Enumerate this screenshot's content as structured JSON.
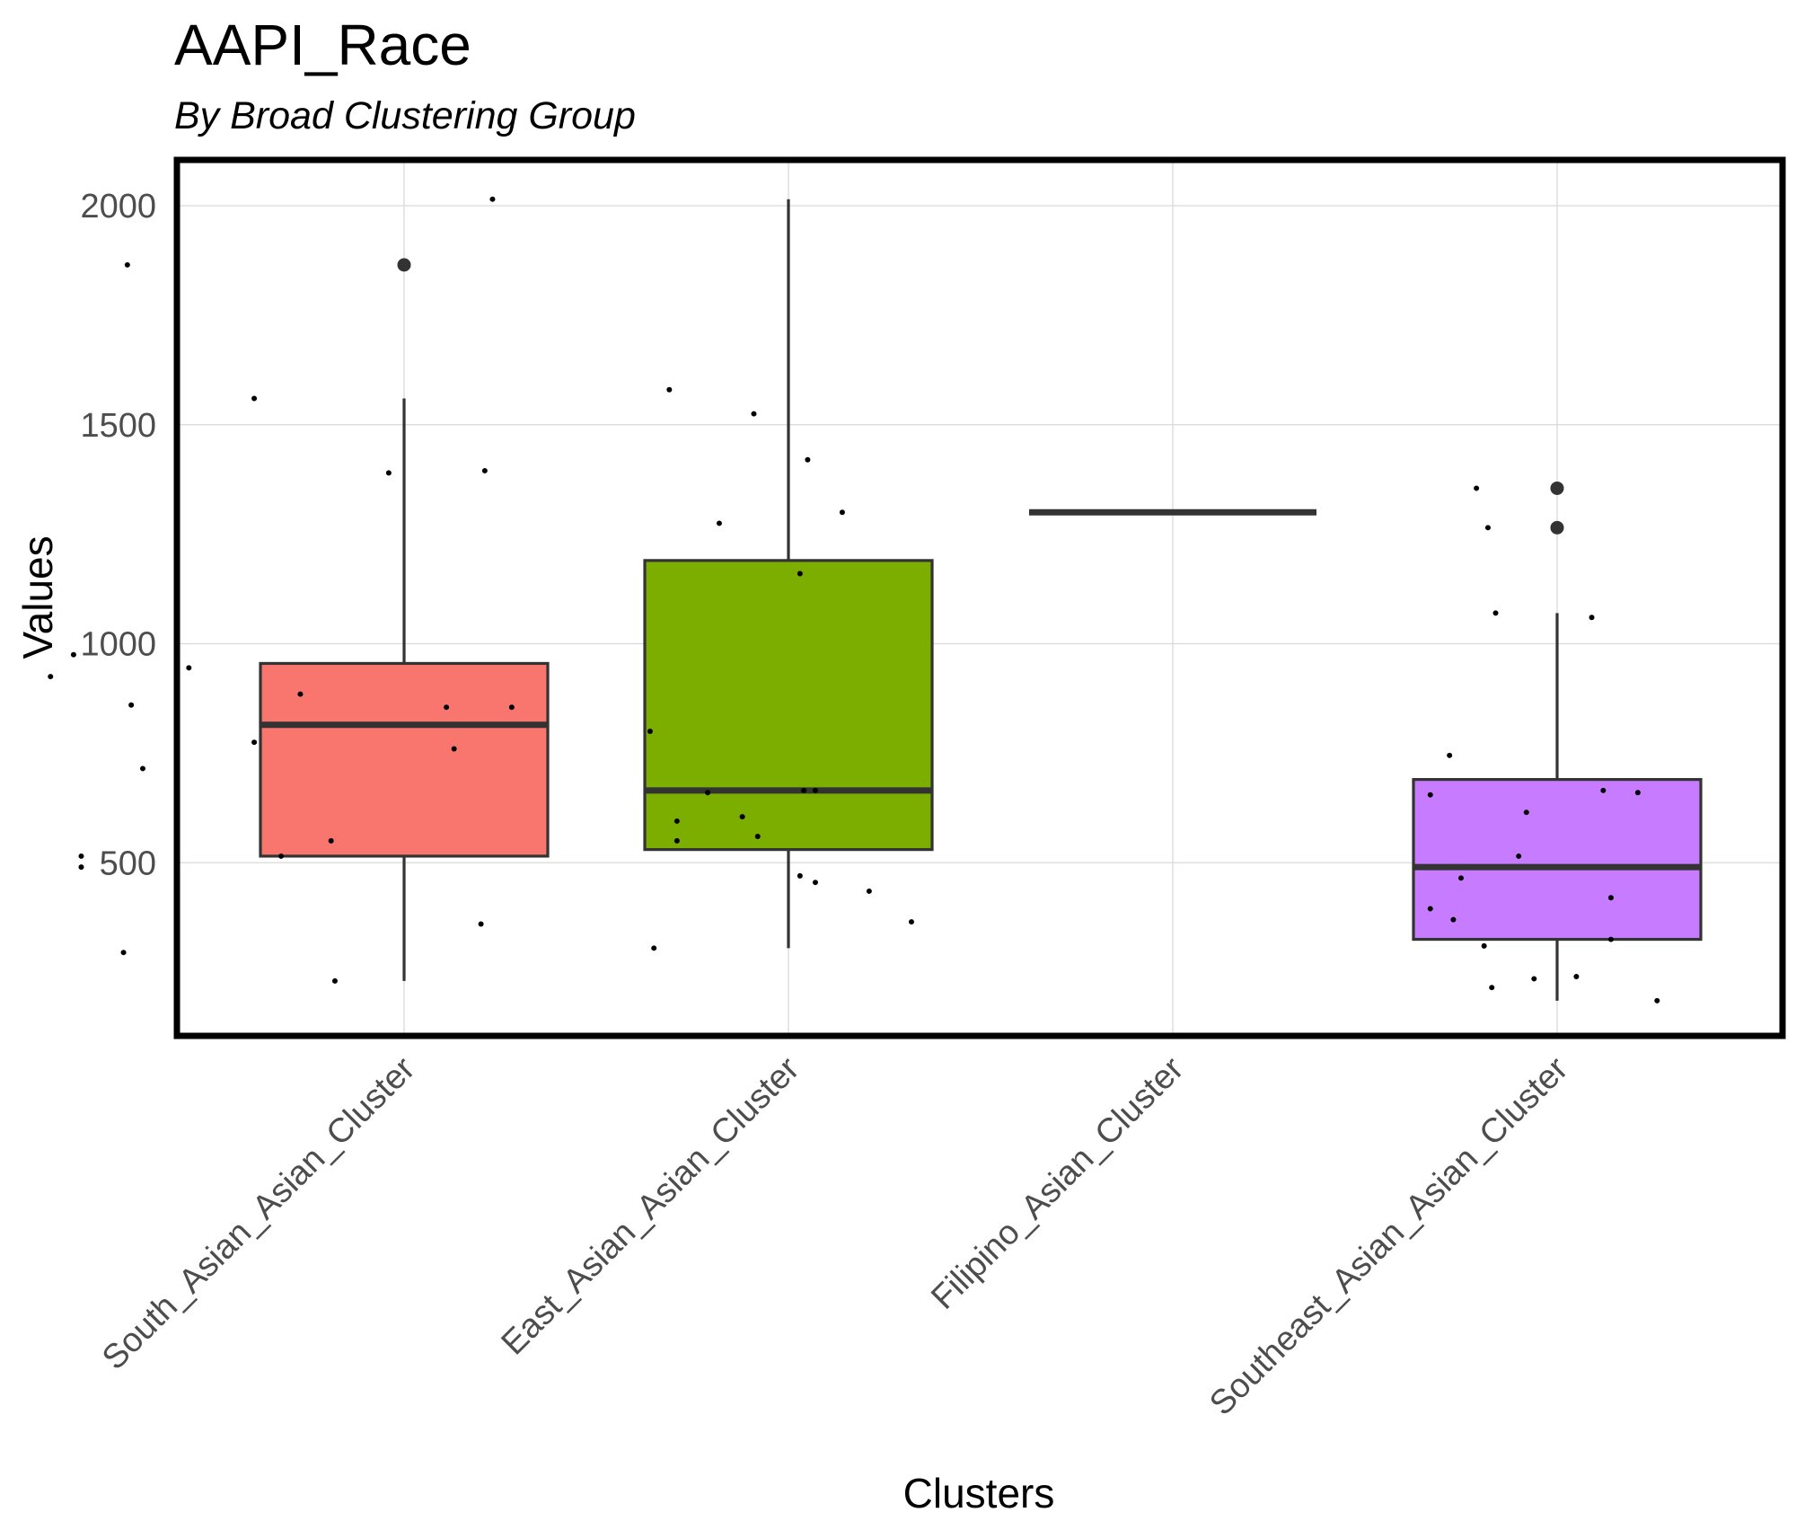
{
  "chart_data": {
    "type": "boxplot",
    "title": "AAPI_Race",
    "subtitle": "By Broad Clustering Group",
    "xlabel": "Clusters",
    "ylabel": "Values",
    "ylim": [
      100,
      2100
    ],
    "yticks": [
      500,
      1000,
      1500,
      2000
    ],
    "grid": true,
    "legend": "none",
    "categories": [
      "South_Asian_Asian_Cluster",
      "East_Asian_Asian_Cluster",
      "Filipino_Asian_Cluster",
      "Southeast_Asian_Asian_Cluster"
    ],
    "boxes": [
      {
        "category": "South_Asian_Asian_Cluster",
        "color": "#F8766D",
        "min": 230,
        "q1": 515,
        "median": 815,
        "q3": 955,
        "max": 1560,
        "outliers": [
          1865
        ]
      },
      {
        "category": "East_Asian_Asian_Cluster",
        "color": "#7CAE00",
        "min": 305,
        "q1": 530,
        "median": 665,
        "q3": 1190,
        "max": 2015,
        "outliers": []
      },
      {
        "category": "Filipino_Asian_Cluster",
        "color": "#00BFC4",
        "min": 1300,
        "q1": 1300,
        "median": 1300,
        "q3": 1300,
        "max": 1300,
        "outliers": []
      },
      {
        "category": "Southeast_Asian_Asian_Cluster",
        "color": "#C77CFF",
        "min": 185,
        "q1": 325,
        "median": 490,
        "q3": 690,
        "max": 1070,
        "outliers": [
          1355,
          1265
        ]
      }
    ],
    "points": [
      {
        "x": 0.28,
        "y": 1865
      },
      {
        "x": 0.61,
        "y": 1560
      },
      {
        "x": 0.96,
        "y": 1390
      },
      {
        "x": 0.14,
        "y": 975
      },
      {
        "x": 0.08,
        "y": 925
      },
      {
        "x": 0.44,
        "y": 945
      },
      {
        "x": 0.73,
        "y": 885
      },
      {
        "x": 0.29,
        "y": 860
      },
      {
        "x": 0.61,
        "y": 775
      },
      {
        "x": 0.32,
        "y": 715
      },
      {
        "x": 0.16,
        "y": 515
      },
      {
        "x": 0.16,
        "y": 490
      },
      {
        "x": 0.68,
        "y": 515
      },
      {
        "x": 0.81,
        "y": 550
      },
      {
        "x": 0.27,
        "y": 295
      },
      {
        "x": 0.82,
        "y": 230
      },
      {
        "x": 1.23,
        "y": 2015
      },
      {
        "x": 1.69,
        "y": 1580
      },
      {
        "x": 1.91,
        "y": 1525
      },
      {
        "x": 2.05,
        "y": 1420
      },
      {
        "x": 1.21,
        "y": 1395
      },
      {
        "x": 1.82,
        "y": 1275
      },
      {
        "x": 2.03,
        "y": 1160
      },
      {
        "x": 1.11,
        "y": 855
      },
      {
        "x": 1.28,
        "y": 855
      },
      {
        "x": 1.64,
        "y": 800
      },
      {
        "x": 1.13,
        "y": 760
      },
      {
        "x": 1.79,
        "y": 660
      },
      {
        "x": 2.04,
        "y": 665
      },
      {
        "x": 2.07,
        "y": 665
      },
      {
        "x": 1.71,
        "y": 595
      },
      {
        "x": 1.88,
        "y": 605
      },
      {
        "x": 1.92,
        "y": 560
      },
      {
        "x": 1.71,
        "y": 550
      },
      {
        "x": 2.03,
        "y": 470
      },
      {
        "x": 2.07,
        "y": 455
      },
      {
        "x": 2.21,
        "y": 435
      },
      {
        "x": 1.2,
        "y": 360
      },
      {
        "x": 2.32,
        "y": 365
      },
      {
        "x": 1.65,
        "y": 305
      },
      {
        "x": 2.14,
        "y": 1300
      },
      {
        "x": 3.79,
        "y": 1355
      },
      {
        "x": 3.82,
        "y": 1265
      },
      {
        "x": 3.84,
        "y": 1070
      },
      {
        "x": 4.09,
        "y": 1060
      },
      {
        "x": 3.72,
        "y": 745
      },
      {
        "x": 3.67,
        "y": 655
      },
      {
        "x": 4.12,
        "y": 665
      },
      {
        "x": 4.21,
        "y": 660
      },
      {
        "x": 3.92,
        "y": 615
      },
      {
        "x": 3.9,
        "y": 515
      },
      {
        "x": 3.75,
        "y": 465
      },
      {
        "x": 4.14,
        "y": 420
      },
      {
        "x": 3.67,
        "y": 395
      },
      {
        "x": 3.73,
        "y": 370
      },
      {
        "x": 3.81,
        "y": 310
      },
      {
        "x": 4.14,
        "y": 325
      },
      {
        "x": 3.83,
        "y": 215
      },
      {
        "x": 3.94,
        "y": 235
      },
      {
        "x": 4.05,
        "y": 240
      },
      {
        "x": 4.26,
        "y": 185
      }
    ]
  }
}
